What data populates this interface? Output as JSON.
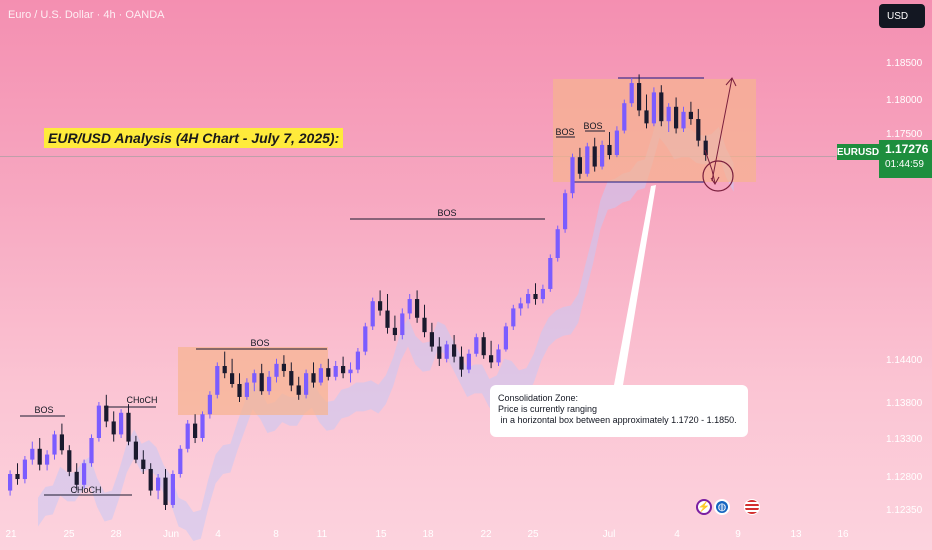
{
  "header": {
    "symbol_line": "Euro / U.S. Dollar · 4h · OANDA",
    "currency_button": "USD"
  },
  "title_banner": "EUR/USD Analysis (4H Chart - July 7, 2025):",
  "callout": {
    "line1": "Consolidation Zone:",
    "line2": "Price is currently ranging",
    "line3": " in a horizontal box between approximately 1.1720 - 1.1850."
  },
  "price_scale": {
    "symbol": "EURUSD",
    "last_price": "1.17276",
    "countdown": "01:44:59",
    "ticks": [
      "1.18500",
      "1.18000",
      "1.17500",
      "1.14400",
      "1.13800",
      "1.13300",
      "1.12800",
      "1.12350"
    ]
  },
  "time_axis": {
    "ticks": [
      "21",
      "25",
      "28",
      "Jun",
      "4",
      "8",
      "11",
      "15",
      "18",
      "22",
      "25",
      "Jul",
      "4",
      "9",
      "13",
      "16"
    ]
  },
  "annotations": {
    "bos_1": "BOS",
    "choch_top": "CHoCH",
    "choch_bottom": "CHoCH",
    "bos_box": "BOS",
    "bos_mid": "BOS",
    "bos_top_1": "BOS",
    "bos_top_2": "BOS"
  },
  "indicator_icons": [
    "lightning-icon",
    "globe-icon",
    "us-flag-icon"
  ],
  "colors": {
    "bull": "#7b5cff",
    "bear": "#1a1a2e",
    "zone_fill": "#f6b38f",
    "cloud": "#c6c9f5",
    "price_tag": "#1e8e3e",
    "banner": "#ffeb3b"
  },
  "chart_data": {
    "type": "candlestick",
    "interval": "4h",
    "ylim": [
      1.1235,
      1.186
    ],
    "consolidation_range": [
      1.172,
      1.185
    ],
    "last_price": 1.17276,
    "candles": [
      [
        1.1262,
        1.129,
        1.1255,
        1.1285
      ],
      [
        1.1285,
        1.13,
        1.127,
        1.1278
      ],
      [
        1.1278,
        1.131,
        1.1272,
        1.1305
      ],
      [
        1.1305,
        1.133,
        1.1298,
        1.132
      ],
      [
        1.132,
        1.1335,
        1.129,
        1.1298
      ],
      [
        1.1298,
        1.1318,
        1.129,
        1.1312
      ],
      [
        1.1312,
        1.1345,
        1.1305,
        1.134
      ],
      [
        1.134,
        1.1355,
        1.1312,
        1.1318
      ],
      [
        1.1318,
        1.1325,
        1.1282,
        1.1288
      ],
      [
        1.1288,
        1.13,
        1.1262,
        1.127
      ],
      [
        1.127,
        1.1305,
        1.1265,
        1.13
      ],
      [
        1.13,
        1.134,
        1.1295,
        1.1335
      ],
      [
        1.1335,
        1.1385,
        1.133,
        1.138
      ],
      [
        1.138,
        1.1395,
        1.135,
        1.1358
      ],
      [
        1.1358,
        1.1372,
        1.133,
        1.134
      ],
      [
        1.134,
        1.1375,
        1.1335,
        1.137
      ],
      [
        1.137,
        1.1382,
        1.1325,
        1.133
      ],
      [
        1.133,
        1.1338,
        1.13,
        1.1305
      ],
      [
        1.1305,
        1.1318,
        1.1285,
        1.1292
      ],
      [
        1.1292,
        1.13,
        1.1255,
        1.1262
      ],
      [
        1.1262,
        1.1285,
        1.125,
        1.128
      ],
      [
        1.128,
        1.1292,
        1.1235,
        1.1242
      ],
      [
        1.1242,
        1.129,
        1.1238,
        1.1285
      ],
      [
        1.1285,
        1.1325,
        1.128,
        1.132
      ],
      [
        1.132,
        1.136,
        1.1315,
        1.1355
      ],
      [
        1.1355,
        1.1368,
        1.1328,
        1.1335
      ],
      [
        1.1335,
        1.1372,
        1.133,
        1.1368
      ],
      [
        1.1368,
        1.14,
        1.1362,
        1.1395
      ],
      [
        1.1395,
        1.144,
        1.139,
        1.1435
      ],
      [
        1.1435,
        1.1455,
        1.1418,
        1.1425
      ],
      [
        1.1425,
        1.1445,
        1.1405,
        1.141
      ],
      [
        1.141,
        1.1425,
        1.1385,
        1.1392
      ],
      [
        1.1392,
        1.1418,
        1.1388,
        1.1412
      ],
      [
        1.1412,
        1.143,
        1.14,
        1.1425
      ],
      [
        1.1425,
        1.1438,
        1.1395,
        1.14
      ],
      [
        1.14,
        1.1428,
        1.1395,
        1.142
      ],
      [
        1.142,
        1.1445,
        1.1412,
        1.1438
      ],
      [
        1.1438,
        1.145,
        1.142,
        1.1428
      ],
      [
        1.1428,
        1.144,
        1.14,
        1.1408
      ],
      [
        1.1408,
        1.142,
        1.1388,
        1.1395
      ],
      [
        1.1395,
        1.143,
        1.139,
        1.1425
      ],
      [
        1.1425,
        1.144,
        1.1405,
        1.1412
      ],
      [
        1.1412,
        1.1438,
        1.1408,
        1.1432
      ],
      [
        1.1432,
        1.1445,
        1.1415,
        1.142
      ],
      [
        1.142,
        1.1442,
        1.1415,
        1.1435
      ],
      [
        1.1435,
        1.1448,
        1.1418,
        1.1425
      ],
      [
        1.1425,
        1.144,
        1.1412,
        1.143
      ],
      [
        1.143,
        1.146,
        1.1425,
        1.1455
      ],
      [
        1.1455,
        1.1495,
        1.145,
        1.149
      ],
      [
        1.149,
        1.153,
        1.1485,
        1.1525
      ],
      [
        1.1525,
        1.154,
        1.1505,
        1.1512
      ],
      [
        1.1512,
        1.1535,
        1.148,
        1.1488
      ],
      [
        1.1488,
        1.1505,
        1.147,
        1.1478
      ],
      [
        1.1478,
        1.1515,
        1.1472,
        1.1508
      ],
      [
        1.1508,
        1.1535,
        1.15,
        1.1528
      ],
      [
        1.1528,
        1.154,
        1.1495,
        1.1502
      ],
      [
        1.1502,
        1.152,
        1.1475,
        1.1482
      ],
      [
        1.1482,
        1.1495,
        1.1455,
        1.1462
      ],
      [
        1.1462,
        1.1475,
        1.1435,
        1.1445
      ],
      [
        1.1445,
        1.147,
        1.144,
        1.1465
      ],
      [
        1.1465,
        1.1478,
        1.144,
        1.1448
      ],
      [
        1.1448,
        1.1462,
        1.142,
        1.143
      ],
      [
        1.143,
        1.1458,
        1.1425,
        1.1452
      ],
      [
        1.1452,
        1.148,
        1.1448,
        1.1475
      ],
      [
        1.1475,
        1.1482,
        1.1445,
        1.145
      ],
      [
        1.145,
        1.147,
        1.1432,
        1.144
      ],
      [
        1.144,
        1.1465,
        1.1435,
        1.1458
      ],
      [
        1.1458,
        1.1495,
        1.1455,
        1.149
      ],
      [
        1.149,
        1.152,
        1.1485,
        1.1515
      ],
      [
        1.1515,
        1.153,
        1.1505,
        1.1522
      ],
      [
        1.1522,
        1.1542,
        1.1515,
        1.1535
      ],
      [
        1.1535,
        1.155,
        1.152,
        1.1528
      ],
      [
        1.1528,
        1.1548,
        1.1522,
        1.1542
      ],
      [
        1.1542,
        1.159,
        1.1538,
        1.1585
      ],
      [
        1.1585,
        1.163,
        1.158,
        1.1625
      ],
      [
        1.1625,
        1.168,
        1.162,
        1.1675
      ],
      [
        1.1675,
        1.173,
        1.1668,
        1.1725
      ],
      [
        1.1725,
        1.1738,
        1.1695,
        1.1702
      ],
      [
        1.1702,
        1.1745,
        1.1698,
        1.174
      ],
      [
        1.174,
        1.1752,
        1.1705,
        1.1712
      ],
      [
        1.1712,
        1.1748,
        1.1708,
        1.1742
      ],
      [
        1.1742,
        1.176,
        1.1722,
        1.1728
      ],
      [
        1.1728,
        1.1768,
        1.1725,
        1.1762
      ],
      [
        1.1762,
        1.1805,
        1.1758,
        1.18
      ],
      [
        1.18,
        1.1835,
        1.1795,
        1.1828
      ],
      [
        1.1828,
        1.184,
        1.1782,
        1.179
      ],
      [
        1.179,
        1.1812,
        1.1765,
        1.1772
      ],
      [
        1.1772,
        1.1822,
        1.1768,
        1.1815
      ],
      [
        1.1815,
        1.1825,
        1.1768,
        1.1775
      ],
      [
        1.1775,
        1.18,
        1.176,
        1.1795
      ],
      [
        1.1795,
        1.1808,
        1.1758,
        1.1765
      ],
      [
        1.1765,
        1.1795,
        1.176,
        1.1788
      ],
      [
        1.1788,
        1.1802,
        1.177,
        1.1778
      ],
      [
        1.1778,
        1.1792,
        1.174,
        1.1748
      ],
      [
        1.1748,
        1.1755,
        1.172,
        1.1728
      ]
    ]
  }
}
